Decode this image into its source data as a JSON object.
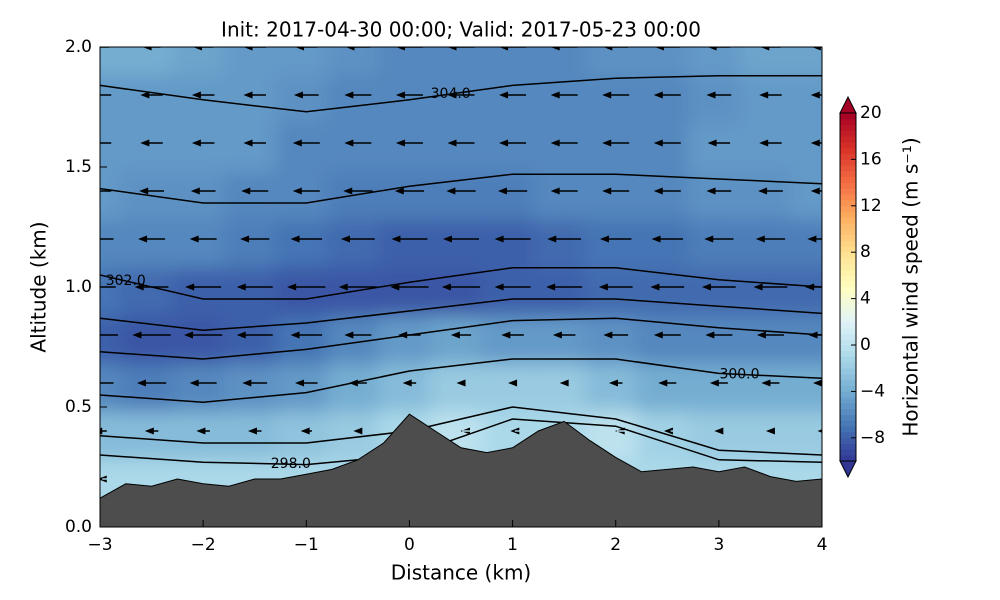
{
  "chart_data": {
    "type": "contour",
    "title": "Init: 2017-04-30 00:00; Valid: 2017-05-23 00:00",
    "xlabel": "Distance (km)",
    "ylabel": "Altitude (km)",
    "xlim": [
      -3,
      4
    ],
    "ylim": [
      0,
      2
    ],
    "xticks": [
      {
        "value": -3,
        "label": "−3"
      },
      {
        "value": -2,
        "label": "−2"
      },
      {
        "value": -1,
        "label": "−1"
      },
      0,
      1,
      2,
      3,
      4
    ],
    "yticks": [
      {
        "value": 0,
        "label": "0.0"
      },
      {
        "value": 0.5,
        "label": "0.5"
      },
      {
        "value": 1,
        "label": "1.0"
      },
      {
        "value": 1.5,
        "label": "1.5"
      },
      {
        "value": 2,
        "label": "2.0"
      }
    ],
    "wind": {
      "x": [
        -3,
        -2.5,
        -2,
        -1.5,
        -1,
        -0.5,
        0,
        0.5,
        1,
        1.5,
        2,
        2.5,
        3,
        3.5,
        4
      ],
      "z": [
        0.2,
        0.4,
        0.6,
        0.8,
        1.0,
        1.2,
        1.4,
        1.6,
        1.8,
        2.0
      ],
      "u": [
        [
          -1,
          -1,
          -1,
          -1,
          -1,
          -1,
          -1,
          -1,
          -1,
          -1,
          -1,
          -1,
          -1,
          -1,
          -1
        ],
        [
          -3,
          -3,
          -3,
          -3,
          -2.5,
          -2,
          -1,
          0,
          -1,
          -1,
          0,
          -1.5,
          -2,
          -2,
          -2
        ],
        [
          -6,
          -6.5,
          -6,
          -5.5,
          -5,
          -4,
          -3,
          -2,
          -2,
          -2,
          -3,
          -4,
          -4,
          -4,
          -4
        ],
        [
          -8,
          -8.5,
          -8.5,
          -8,
          -7,
          -6,
          -5,
          -4.5,
          -5,
          -5,
          -5.5,
          -6,
          -6,
          -6,
          -6
        ],
        [
          -7,
          -7.5,
          -8,
          -8,
          -8.5,
          -8.5,
          -8.5,
          -8.5,
          -8,
          -8,
          -7.5,
          -7.5,
          -7.5,
          -7.5,
          -7.5
        ],
        [
          -6,
          -6,
          -6,
          -6.5,
          -7,
          -7.5,
          -8,
          -8,
          -8,
          -7.5,
          -7,
          -7,
          -6.5,
          -6.5,
          -6.5
        ],
        [
          -5,
          -5.5,
          -5.5,
          -6,
          -6,
          -6.5,
          -6.5,
          -6.5,
          -6.5,
          -6,
          -6,
          -6,
          -5.5,
          -5.5,
          -5
        ],
        [
          -5,
          -5,
          -5,
          -5,
          -6,
          -6,
          -6,
          -6,
          -6,
          -6,
          -6,
          -6,
          -5,
          -5,
          -5
        ],
        [
          -5,
          -5,
          -5,
          -5,
          -5.5,
          -6,
          -6,
          -6,
          -6,
          -6,
          -6,
          -6,
          -5.5,
          -5,
          -5
        ],
        [
          -4,
          -4,
          -4.5,
          -5,
          -5,
          -5.5,
          -6,
          -6,
          -6,
          -6,
          -5.5,
          -5.5,
          -5,
          -4.5,
          -4.5
        ]
      ]
    },
    "terrain": {
      "x": [
        -3,
        -2.75,
        -2.5,
        -2.25,
        -2,
        -1.75,
        -1.5,
        -1.25,
        -1,
        -0.75,
        -0.5,
        -0.25,
        0,
        0.25,
        0.5,
        0.75,
        1,
        1.25,
        1.5,
        1.75,
        2,
        2.25,
        2.5,
        2.75,
        3,
        3.25,
        3.5,
        3.75,
        4
      ],
      "values": [
        0.12,
        0.18,
        0.17,
        0.2,
        0.18,
        0.17,
        0.2,
        0.2,
        0.22,
        0.24,
        0.28,
        0.35,
        0.47,
        0.4,
        0.33,
        0.31,
        0.33,
        0.4,
        0.44,
        0.36,
        0.29,
        0.23,
        0.24,
        0.25,
        0.23,
        0.25,
        0.21,
        0.19,
        0.2
      ],
      "color": "#4d4d4d"
    },
    "isentrope_x": [
      -3,
      -2,
      -1,
      0,
      1,
      2,
      3,
      4
    ],
    "isentropes": [
      {
        "label": "304.0",
        "values": [
          1.84,
          1.78,
          1.73,
          1.78,
          1.84,
          1.87,
          1.88,
          1.88
        ]
      },
      {
        "values": [
          1.41,
          1.35,
          1.35,
          1.42,
          1.47,
          1.47,
          1.45,
          1.43
        ]
      },
      {
        "label": "302.0",
        "values": [
          1.05,
          0.95,
          0.95,
          1.02,
          1.08,
          1.08,
          1.03,
          1.0
        ]
      },
      {
        "values": [
          0.87,
          0.82,
          0.85,
          0.9,
          0.95,
          0.95,
          0.92,
          0.89
        ]
      },
      {
        "values": [
          0.73,
          0.7,
          0.74,
          0.8,
          0.86,
          0.87,
          0.83,
          0.8
        ]
      },
      {
        "label": "300.0",
        "values": [
          0.55,
          0.52,
          0.56,
          0.65,
          0.7,
          0.7,
          0.64,
          0.62
        ]
      },
      {
        "values": [
          0.38,
          0.35,
          0.35,
          0.4,
          0.5,
          0.45,
          0.32,
          0.3
        ]
      },
      {
        "label": "298.0",
        "values": [
          0.3,
          0.27,
          0.26,
          0.3,
          0.45,
          0.42,
          0.28,
          0.27
        ]
      }
    ],
    "colorbar": {
      "label": "Horizontal wind speed (m s⁻¹)",
      "clim": [
        -10,
        20
      ],
      "ticks": [
        {
          "value": -8,
          "label": "−8"
        },
        {
          "value": -4,
          "label": "−4"
        },
        0,
        4,
        8,
        12,
        16,
        20
      ]
    }
  }
}
